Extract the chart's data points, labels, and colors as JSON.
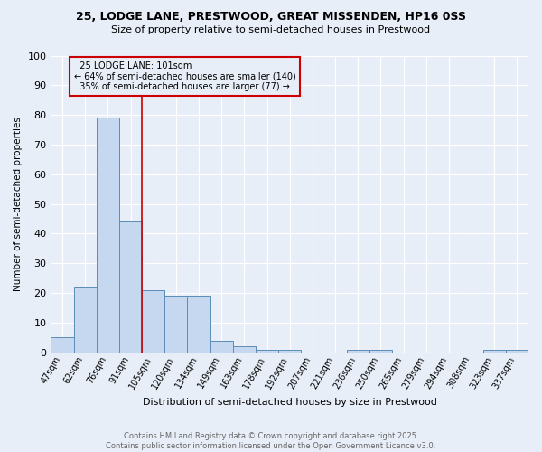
{
  "title_line1": "25, LODGE LANE, PRESTWOOD, GREAT MISSENDEN, HP16 0SS",
  "title_line2": "Size of property relative to semi-detached houses in Prestwood",
  "categories": [
    "47sqm",
    "62sqm",
    "76sqm",
    "91sqm",
    "105sqm",
    "120sqm",
    "134sqm",
    "149sqm",
    "163sqm",
    "178sqm",
    "192sqm",
    "207sqm",
    "221sqm",
    "236sqm",
    "250sqm",
    "265sqm",
    "279sqm",
    "294sqm",
    "308sqm",
    "323sqm",
    "337sqm"
  ],
  "values": [
    5,
    22,
    79,
    44,
    21,
    19,
    19,
    4,
    2,
    1,
    1,
    0,
    0,
    1,
    1,
    0,
    0,
    0,
    0,
    1,
    1
  ],
  "bar_color": "#c5d8f0",
  "bar_edge_color": "#5b8db8",
  "background_color": "#e8eef8",
  "grid_color": "#ffffff",
  "ylabel": "Number of semi-detached properties",
  "xlabel": "Distribution of semi-detached houses by size in Prestwood",
  "ylim": [
    0,
    100
  ],
  "yticks": [
    0,
    10,
    20,
    30,
    40,
    50,
    60,
    70,
    80,
    90,
    100
  ],
  "property_label": "25 LODGE LANE: 101sqm",
  "pct_smaller": 64,
  "count_smaller": 140,
  "pct_larger": 35,
  "count_larger": 77,
  "vline_x_index": 4,
  "vline_color": "#cc0000",
  "annotation_box_color": "#cc0000",
  "footer_line1": "Contains HM Land Registry data © Crown copyright and database right 2025.",
  "footer_line2": "Contains public sector information licensed under the Open Government Licence v3.0."
}
